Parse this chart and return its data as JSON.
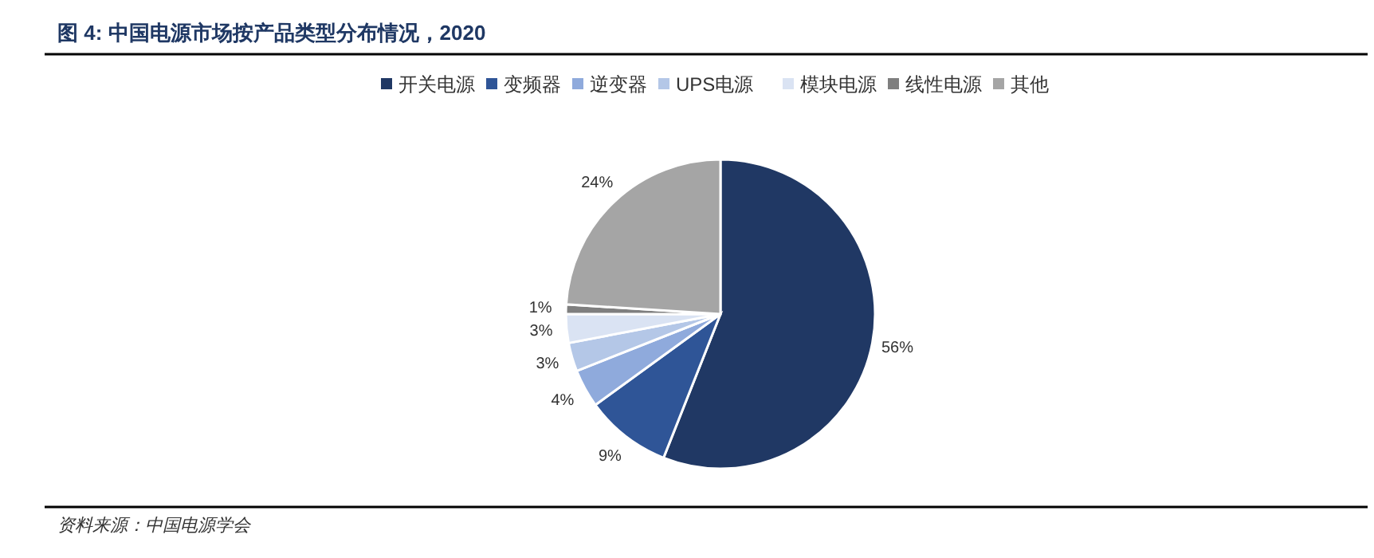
{
  "chart_data": {
    "type": "pie",
    "title": "图 4:  中国电源市场按产品类型分布情况，2020",
    "categories": [
      "开关电源",
      "变频器",
      "逆变器",
      "UPS电源",
      "模块电源",
      "线性电源",
      "其他"
    ],
    "values": [
      56,
      9,
      4,
      3,
      3,
      1,
      24
    ],
    "colors": [
      "#203864",
      "#2f5597",
      "#8faadc",
      "#b4c7e7",
      "#dae3f3",
      "#7f7f7f",
      "#a5a5a5"
    ],
    "value_labels": [
      "56%",
      "9%",
      "4%",
      "3%",
      "3%",
      "1%",
      "24%"
    ],
    "legend": "top",
    "annotations": [
      "资料来源：中国电源学会"
    ]
  }
}
